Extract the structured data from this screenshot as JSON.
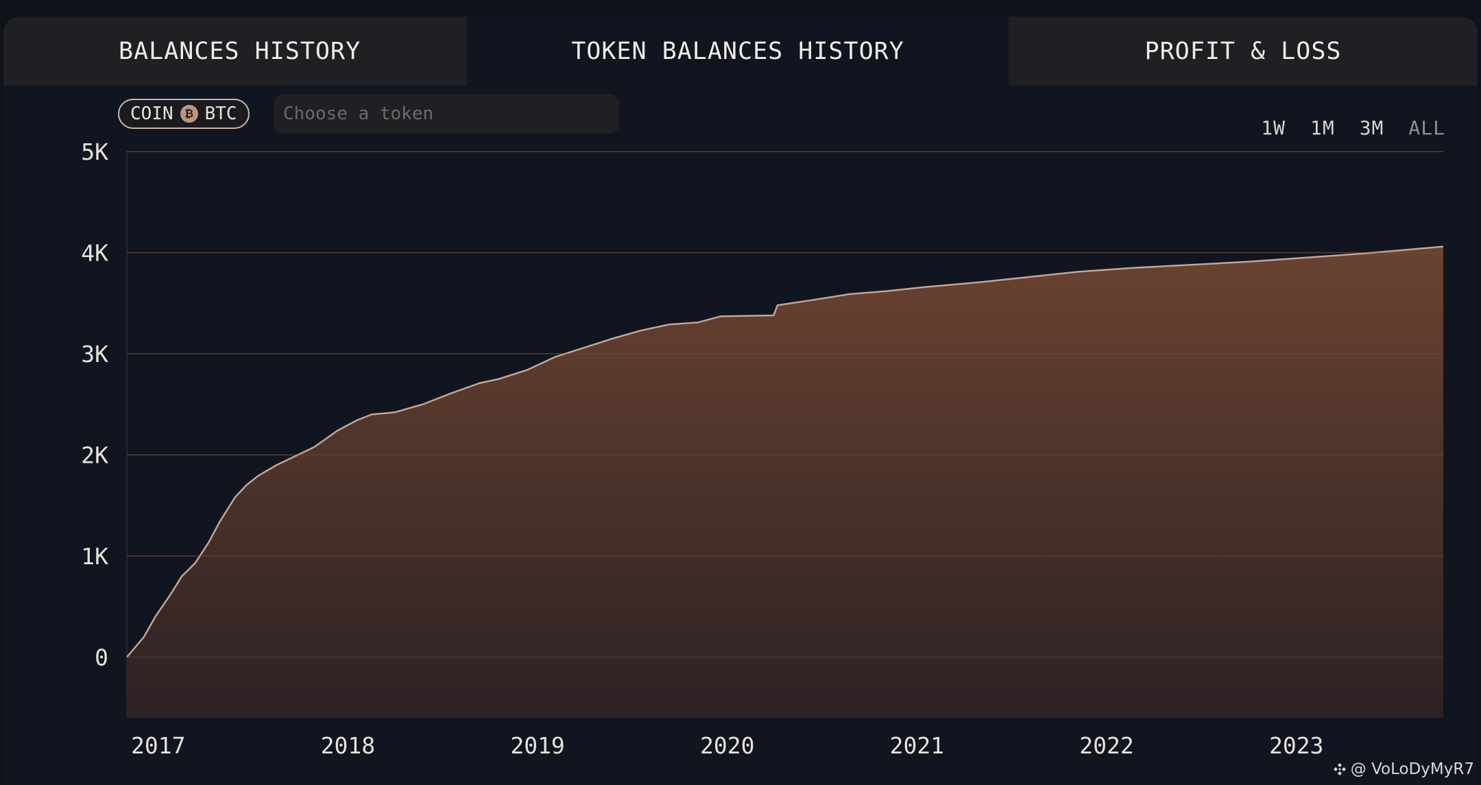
{
  "tabs": [
    {
      "label": "BALANCES HISTORY",
      "active": false
    },
    {
      "label": "TOKEN BALANCES HISTORY",
      "active": true
    },
    {
      "label": "PROFIT & LOSS",
      "active": false
    }
  ],
  "coin_filter": {
    "label": "COIN",
    "symbol": "BTC",
    "icon": "bitcoin-icon"
  },
  "token_search": {
    "placeholder": "Choose a token"
  },
  "ranges": [
    {
      "label": "1W",
      "active": false
    },
    {
      "label": "1M",
      "active": false
    },
    {
      "label": "3M",
      "active": false
    },
    {
      "label": "ALL",
      "active": true
    }
  ],
  "watermark": "@ VoLoDyMyR7",
  "colors": {
    "background": "#101520",
    "area_top": "#6a4330",
    "area_bottom": "#2c2124",
    "line": "#c9a48d",
    "grid": "#3a2d2a"
  },
  "chart_data": {
    "type": "area",
    "title": "",
    "xlabel": "",
    "ylabel": "",
    "x_ticks": [
      "2017",
      "2018",
      "2019",
      "2020",
      "2021",
      "2022",
      "2023"
    ],
    "x_tick_values": [
      2017.0,
      2018.0,
      2019.0,
      2020.0,
      2021.0,
      2022.0,
      2023.0
    ],
    "y_ticks": [
      "0",
      "1K",
      "2K",
      "3K",
      "4K",
      "5K"
    ],
    "y_tick_values": [
      0,
      1000,
      2000,
      3000,
      4000,
      5000
    ],
    "xlim": [
      2016.99,
      2023.93
    ],
    "ylim": [
      -600,
      5000
    ],
    "grid": true,
    "legend": "none",
    "series": [
      {
        "x": [
          2016.99,
          2017.08,
          2017.14,
          2017.22,
          2017.28,
          2017.35,
          2017.42,
          2017.48,
          2017.56,
          2017.62,
          2017.68,
          2017.78,
          2017.88,
          2017.98,
          2018.1,
          2018.2,
          2018.28,
          2018.4,
          2018.55,
          2018.7,
          2018.85,
          2018.95,
          2019.1,
          2019.25,
          2019.4,
          2019.55,
          2019.7,
          2019.85,
          2020.0,
          2020.12,
          2020.4,
          2020.42,
          2020.6,
          2020.8,
          2021.0,
          2021.2,
          2021.5,
          2021.75,
          2022.0,
          2022.3,
          2022.6,
          2022.9,
          2023.2,
          2023.5,
          2023.93
        ],
        "y": [
          0,
          200,
          400,
          620,
          800,
          930,
          1130,
          1340,
          1580,
          1700,
          1790,
          1900,
          1990,
          2080,
          2240,
          2340,
          2400,
          2420,
          2500,
          2610,
          2710,
          2750,
          2840,
          2970,
          3060,
          3150,
          3230,
          3290,
          3310,
          3370,
          3380,
          3480,
          3530,
          3590,
          3620,
          3660,
          3710,
          3760,
          3810,
          3850,
          3880,
          3910,
          3950,
          3990,
          4060
        ]
      }
    ]
  }
}
